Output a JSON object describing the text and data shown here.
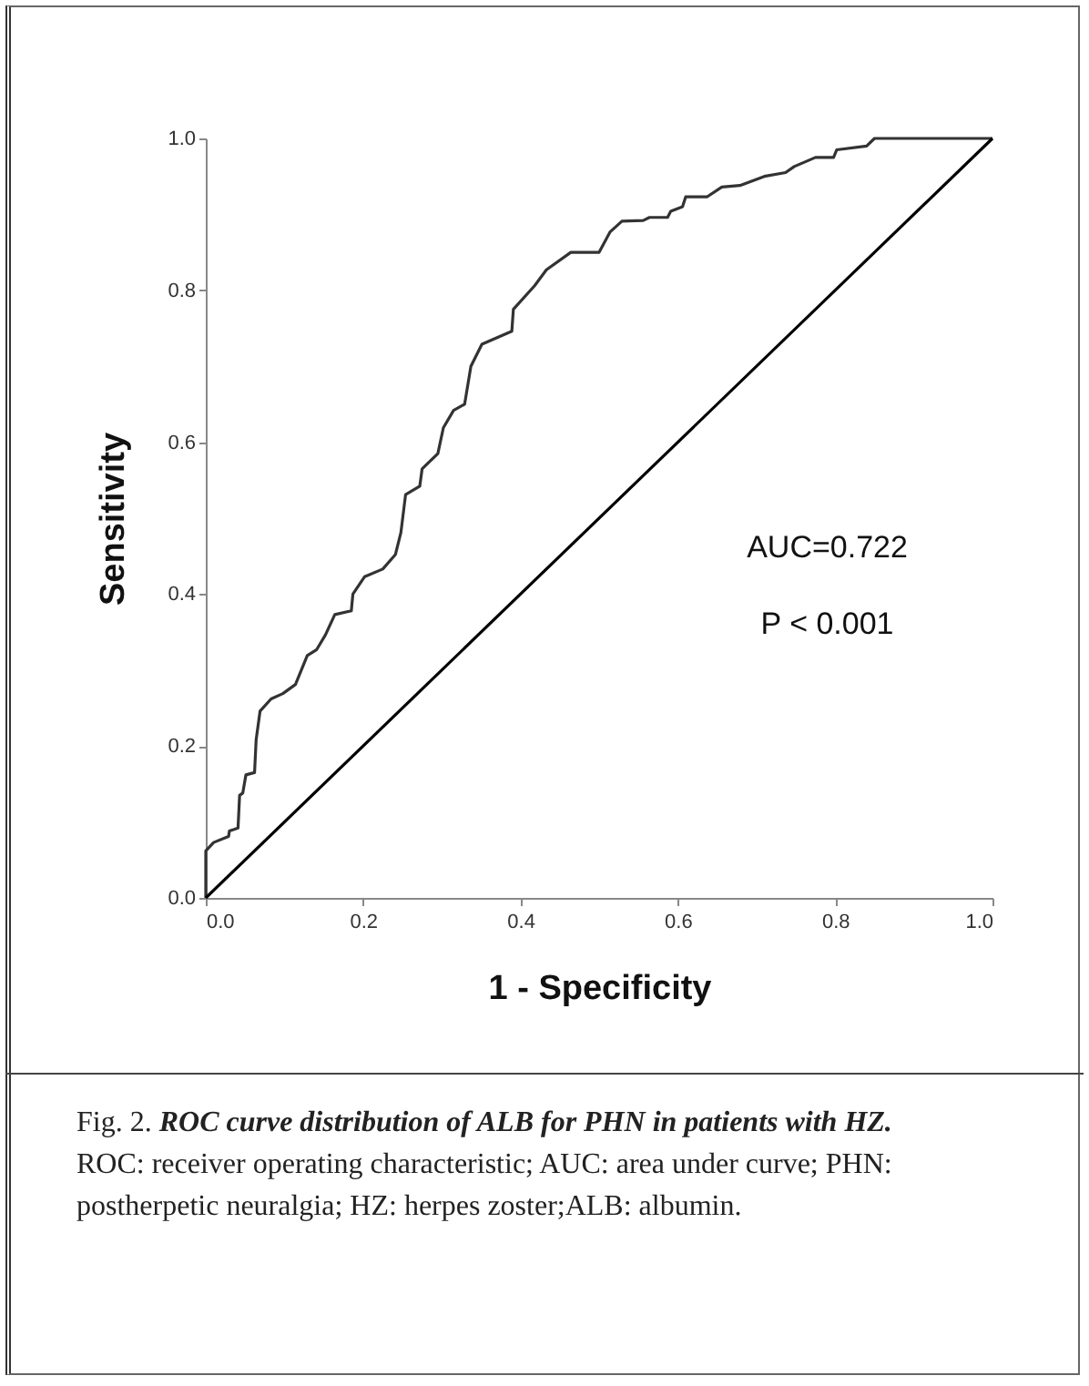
{
  "chart_data": {
    "type": "line",
    "xlabel": "1 - Specificity",
    "ylabel": "Sensitivity",
    "xlim": [
      0,
      1
    ],
    "ylim": [
      0,
      1
    ],
    "xticks": [
      {
        "value": 0,
        "label": "0.0"
      },
      {
        "value": 0.2,
        "label": "0.2"
      },
      {
        "value": 0.4,
        "label": "0.4"
      },
      {
        "value": 0.6,
        "label": "0.6"
      },
      {
        "value": 0.8,
        "label": "0.8"
      },
      {
        "value": 1,
        "label": "1.0"
      }
    ],
    "yticks": [
      {
        "value": 0,
        "label": "0.0"
      },
      {
        "value": 0.2,
        "label": "0.2"
      },
      {
        "value": 0.4,
        "label": "0.4"
      },
      {
        "value": 0.6,
        "label": "0.6"
      },
      {
        "value": 0.8,
        "label": "0.8"
      },
      {
        "value": 1,
        "label": "1.0"
      }
    ],
    "grid": false,
    "legend": false,
    "marker": "none",
    "line_style": "solid",
    "series": [
      {
        "color": "#333333",
        "x": [
          0,
          0,
          0.01,
          0.029,
          0.03,
          0.041,
          0.043,
          0.047,
          0.051,
          0.062,
          0.064,
          0.069,
          0.083,
          0.098,
          0.114,
          0.129,
          0.141,
          0.152,
          0.164,
          0.185,
          0.187,
          0.202,
          0.225,
          0.241,
          0.248,
          0.254,
          0.272,
          0.275,
          0.295,
          0.302,
          0.315,
          0.329,
          0.337,
          0.351,
          0.389,
          0.391,
          0.418,
          0.433,
          0.464,
          0.5,
          0.514,
          0.529,
          0.556,
          0.564,
          0.587,
          0.591,
          0.606,
          0.61,
          0.637,
          0.656,
          0.679,
          0.71,
          0.737,
          0.748,
          0.775,
          0.798,
          0.802,
          0.84,
          0.85,
          1
        ],
        "values": [
          0,
          0.062,
          0.073,
          0.081,
          0.088,
          0.092,
          0.135,
          0.138,
          0.162,
          0.165,
          0.208,
          0.246,
          0.262,
          0.269,
          0.281,
          0.319,
          0.327,
          0.346,
          0.373,
          0.378,
          0.4,
          0.423,
          0.433,
          0.452,
          0.481,
          0.531,
          0.542,
          0.565,
          0.585,
          0.619,
          0.642,
          0.65,
          0.7,
          0.729,
          0.746,
          0.775,
          0.806,
          0.827,
          0.85,
          0.85,
          0.877,
          0.891,
          0.892,
          0.896,
          0.896,
          0.904,
          0.91,
          0.923,
          0.923,
          0.936,
          0.938,
          0.95,
          0.955,
          0.963,
          0.975,
          0.975,
          0.985,
          0.99,
          1,
          1
        ]
      },
      {
        "color": "#000000",
        "x": [
          0,
          1
        ],
        "values": [
          0,
          1
        ]
      }
    ],
    "annotations": [
      "AUC=0.722",
      "P < 0.001",
      "Fig. 2.",
      "ROC curve distribution of  ALB for PHN in patients with HZ.",
      "ROC: receiver operating characteristic; AUC: area under curve; PHN: postherpetic neuralgia; HZ: herpes zoster;ALB: albumin."
    ]
  }
}
